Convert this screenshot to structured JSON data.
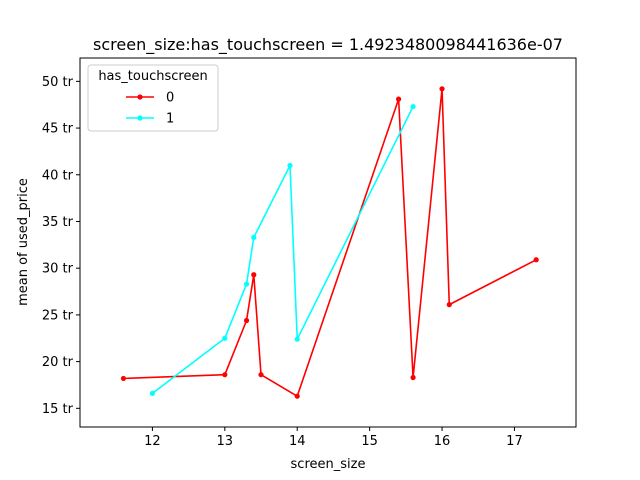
{
  "chart_data": {
    "type": "line",
    "title": "screen_size:has_touchscreen = 1.4923480098441636e-07",
    "xlabel": "screen_size",
    "ylabel": "mean of used_price",
    "xlim": [
      11.0,
      17.85
    ],
    "ylim": [
      13.0,
      52.5
    ],
    "xticks": [
      12,
      13,
      14,
      15,
      16,
      17
    ],
    "xtick_labels": [
      "12",
      "13",
      "14",
      "15",
      "16",
      "17"
    ],
    "yticks": [
      15,
      20,
      25,
      30,
      35,
      40,
      45,
      50
    ],
    "ytick_labels": [
      "15 tr",
      "20 tr",
      "25 tr",
      "30 tr",
      "35 tr",
      "40 tr",
      "45 tr",
      "50 tr"
    ],
    "grid": false,
    "legend": {
      "title": "has_touchscreen",
      "placement": "top-left"
    },
    "series": [
      {
        "name": "0",
        "color": "#ff0000",
        "x": [
          11.6,
          13.0,
          13.3,
          13.4,
          13.5,
          14.0,
          15.4,
          15.6,
          16.0,
          16.1,
          17.3
        ],
        "y": [
          18.2,
          18.6,
          24.4,
          29.3,
          18.6,
          16.3,
          48.1,
          18.3,
          49.2,
          26.1,
          30.9
        ]
      },
      {
        "name": "1",
        "color": "#00ffff",
        "x": [
          12.0,
          13.0,
          13.3,
          13.4,
          13.9,
          14.0,
          15.6
        ],
        "y": [
          16.6,
          22.5,
          28.3,
          33.3,
          41.0,
          22.4,
          47.3
        ]
      }
    ]
  }
}
